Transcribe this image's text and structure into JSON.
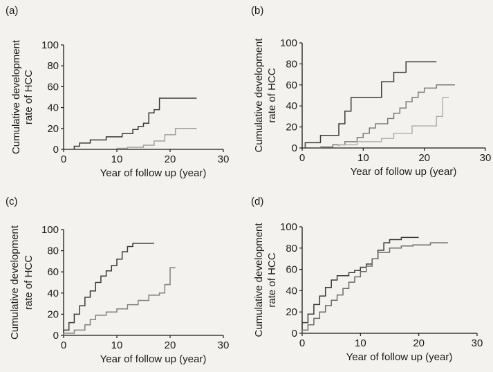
{
  "figure": {
    "background": "#f4f2ee",
    "ink": "#1a1a1a"
  },
  "chart_data": [
    {
      "type": "line",
      "step": true,
      "panel_label": "(a)",
      "xlabel": "Year of follow up (year)",
      "ylabel_lines": [
        "Cumulative development",
        "rate of HCC"
      ],
      "xlim": [
        0,
        30
      ],
      "ylim": [
        0,
        100
      ],
      "xticks": [
        "0",
        "10",
        "20",
        "30"
      ],
      "yticks": [
        "0",
        "20",
        "40",
        "60",
        "80",
        "100"
      ],
      "series": [
        {
          "color": "#3a3a3a",
          "x": [
            2,
            2,
            3,
            3,
            5,
            5,
            8,
            8,
            11,
            11,
            13,
            13,
            14,
            14,
            15,
            15,
            16,
            16,
            17,
            17,
            18,
            18,
            25
          ],
          "y": [
            0,
            3,
            3,
            6,
            6,
            9,
            9,
            12,
            12,
            15,
            15,
            19,
            19,
            22,
            22,
            25,
            25,
            35,
            35,
            38,
            38,
            49,
            49
          ]
        },
        {
          "color": "#a0a0a0",
          "x": [
            10,
            10,
            12,
            12,
            15,
            15,
            17,
            17,
            19,
            19,
            21,
            21,
            25
          ],
          "y": [
            0,
            1,
            1,
            2,
            2,
            4,
            4,
            8,
            8,
            14,
            14,
            20,
            20
          ]
        }
      ]
    },
    {
      "type": "line",
      "step": true,
      "panel_label": "(b)",
      "xlabel": "Year of follow up (year)",
      "ylabel_lines": [
        "Cumulative development",
        "rate of HCC"
      ],
      "xlim": [
        0,
        30
      ],
      "ylim": [
        0,
        100
      ],
      "xticks": [
        "0",
        "10",
        "20",
        "30"
      ],
      "yticks": [
        "0",
        "20",
        "40",
        "60",
        "80",
        "100"
      ],
      "series": [
        {
          "color": "#3a3a3a",
          "x": [
            0.5,
            0.5,
            3,
            3,
            6,
            6,
            7,
            7,
            8,
            8,
            10,
            10,
            13,
            13,
            15,
            15,
            17,
            17,
            22
          ],
          "y": [
            0,
            5,
            5,
            12,
            12,
            23,
            23,
            35,
            35,
            48,
            48,
            48,
            48,
            63,
            63,
            72,
            72,
            82,
            82
          ]
        },
        {
          "color": "#7a7a7a",
          "x": [
            3,
            3,
            5,
            5,
            7,
            7,
            9,
            9,
            10,
            10,
            11,
            11,
            12,
            12,
            14,
            14,
            15,
            15,
            16,
            16,
            17,
            17,
            18,
            18,
            19,
            19,
            20,
            20,
            22,
            22,
            25
          ],
          "y": [
            0,
            1,
            1,
            3,
            3,
            6,
            6,
            10,
            10,
            14,
            14,
            19,
            19,
            23,
            23,
            28,
            28,
            33,
            33,
            38,
            38,
            44,
            44,
            48,
            48,
            53,
            53,
            57,
            57,
            60,
            60
          ]
        },
        {
          "color": "#b0b0b0",
          "x": [
            6,
            6,
            9,
            9,
            13,
            13,
            15,
            15,
            18,
            18,
            22,
            22,
            23,
            23,
            24
          ],
          "y": [
            0,
            3,
            3,
            6,
            6,
            9,
            9,
            14,
            14,
            21,
            21,
            30,
            30,
            48,
            48
          ]
        }
      ]
    },
    {
      "type": "line",
      "step": true,
      "panel_label": "(c)",
      "xlabel": "Year of follow up (year)",
      "ylabel_lines": [
        "Cumulative development",
        "rate of HCC"
      ],
      "xlim": [
        0,
        30
      ],
      "ylim": [
        0,
        100
      ],
      "xticks": [
        "0",
        "10",
        "20",
        "30"
      ],
      "yticks": [
        "0",
        "20",
        "40",
        "60",
        "80",
        "100"
      ],
      "series": [
        {
          "color": "#3a3a3a",
          "x": [
            0,
            0,
            1,
            1,
            2,
            2,
            3,
            3,
            4,
            4,
            5,
            5,
            6,
            6,
            7,
            7,
            8,
            8,
            9,
            9,
            10,
            10,
            11,
            11,
            12,
            12,
            13,
            13,
            17
          ],
          "y": [
            0,
            5,
            5,
            12,
            12,
            20,
            20,
            28,
            28,
            36,
            36,
            42,
            42,
            50,
            50,
            56,
            56,
            61,
            61,
            66,
            66,
            72,
            72,
            79,
            79,
            84,
            84,
            87,
            87
          ]
        },
        {
          "color": "#808080",
          "x": [
            0,
            0,
            2,
            2,
            4,
            4,
            5,
            5,
            6,
            6,
            8,
            8,
            10,
            10,
            12,
            12,
            14,
            14,
            16,
            16,
            18,
            18,
            19,
            19,
            20,
            20,
            21
          ],
          "y": [
            0,
            2,
            2,
            5,
            5,
            10,
            10,
            15,
            15,
            19,
            19,
            22,
            22,
            25,
            25,
            29,
            29,
            33,
            33,
            38,
            38,
            40,
            40,
            48,
            48,
            64,
            64
          ]
        }
      ]
    },
    {
      "type": "line",
      "step": true,
      "panel_label": "(d)",
      "xlabel": "Year of follow up (year)",
      "ylabel_lines": [
        "Cumulative development",
        "rate of HCC"
      ],
      "xlim": [
        0,
        30
      ],
      "ylim": [
        0,
        100
      ],
      "xticks": [
        "0",
        "10",
        "20",
        "30"
      ],
      "yticks": [
        "0",
        "20",
        "40",
        "60",
        "80",
        "100"
      ],
      "series": [
        {
          "color": "#3a3a3a",
          "x": [
            0,
            0,
            1,
            1,
            2,
            2,
            3,
            3,
            4,
            4,
            5,
            5,
            6,
            6,
            8,
            8,
            9,
            9,
            10,
            10,
            11,
            11,
            12,
            12,
            13,
            13,
            14,
            14,
            15,
            15,
            17,
            17,
            20
          ],
          "y": [
            0,
            10,
            10,
            18,
            18,
            27,
            27,
            35,
            35,
            43,
            43,
            50,
            50,
            54,
            54,
            57,
            57,
            59,
            59,
            62,
            62,
            65,
            65,
            70,
            70,
            78,
            78,
            85,
            85,
            88,
            88,
            90,
            90
          ]
        },
        {
          "color": "#6a6a6a",
          "x": [
            0,
            0,
            1,
            1,
            2,
            2,
            3,
            3,
            4,
            4,
            5,
            5,
            6,
            6,
            7,
            7,
            8,
            8,
            9,
            9,
            10,
            10,
            11,
            11,
            12,
            12,
            13,
            13,
            15,
            15,
            17,
            17,
            19,
            19,
            22,
            22,
            25
          ],
          "y": [
            0,
            3,
            3,
            8,
            8,
            14,
            14,
            20,
            20,
            26,
            26,
            31,
            31,
            36,
            36,
            42,
            42,
            48,
            48,
            53,
            53,
            58,
            58,
            63,
            63,
            70,
            70,
            76,
            76,
            80,
            80,
            82,
            82,
            83,
            83,
            85,
            85
          ]
        }
      ]
    }
  ]
}
